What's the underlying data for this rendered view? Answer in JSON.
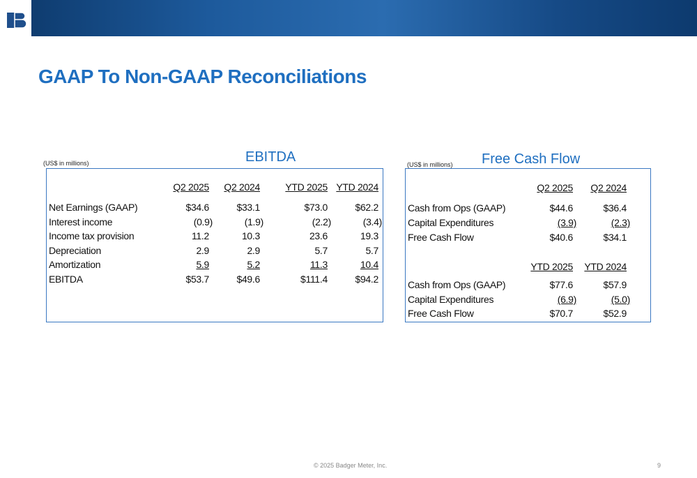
{
  "title": "GAAP To Non-GAAP Reconciliations",
  "ebitda": {
    "title": "EBITDA",
    "note": "(US$ in millions)",
    "columns": [
      "Q2 2025",
      "Q2 2024",
      "YTD 2025",
      "YTD 2024"
    ],
    "rows": [
      [
        "Net Earnings (GAAP)",
        "$34.6",
        "$33.1",
        "$73.0",
        "$62.2"
      ],
      [
        "Interest income",
        "(0.9)",
        "(1.9)",
        "(2.2)",
        "(3.4)"
      ],
      [
        "Income tax provision",
        "11.2",
        "10.3",
        "23.6",
        "19.3"
      ],
      [
        "Depreciation",
        "2.9",
        "2.9",
        "5.7",
        "5.7"
      ],
      [
        "Amortization",
        "5.9",
        "5.2",
        "11.3",
        "10.4"
      ],
      [
        "EBITDA",
        "$53.7",
        "$49.6",
        "$111.4",
        "$94.2"
      ]
    ]
  },
  "fcf": {
    "title": "Free Cash Flow",
    "note": "(US$ in millions)",
    "sections": [
      {
        "columns": [
          "Q2 2025",
          "Q2 2024"
        ],
        "rows": [
          [
            "Cash from Ops (GAAP)",
            "$44.6",
            "$36.4"
          ],
          [
            "Capital Expenditures",
            "(3.9)",
            "(2.3)"
          ],
          [
            "Free Cash Flow",
            "$40.6",
            "$34.1"
          ]
        ]
      },
      {
        "columns": [
          "YTD 2025",
          "YTD 2024"
        ],
        "rows": [
          [
            "Cash from Ops (GAAP)",
            "$77.6",
            "$57.9"
          ],
          [
            "Capital Expenditures",
            "(6.9)",
            "(5.0)"
          ],
          [
            "Free Cash Flow",
            "$70.7",
            "$52.9"
          ]
        ]
      }
    ]
  },
  "footer": {
    "copyright": "© 2025 Badger Meter, Inc.",
    "page": "9"
  }
}
